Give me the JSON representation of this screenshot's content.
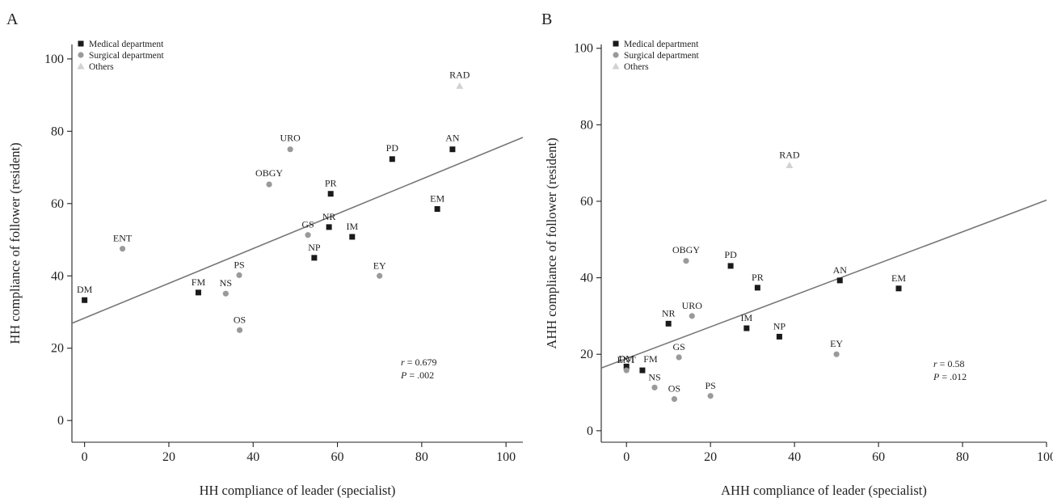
{
  "colors": {
    "medical": "#1a1a1a",
    "surgical": "#9a9a9a",
    "others": "#d2d2d2",
    "regression": "#777777"
  },
  "chart_data": [
    {
      "type": "scatter",
      "panel": "A",
      "xlabel": "HH compliance of leader (specialist)",
      "ylabel": "HH compliance of follower (resident)",
      "xlim": [
        -3,
        104
      ],
      "ylim": [
        -6,
        104
      ],
      "xticks": [
        0,
        20,
        40,
        60,
        80,
        100
      ],
      "yticks": [
        0,
        20,
        40,
        60,
        80,
        100
      ],
      "grid": false,
      "legend_position": "top-left",
      "legend": [
        {
          "label": "Medical department",
          "group": "medical",
          "marker": "square"
        },
        {
          "label": "Surgical department",
          "group": "surgical",
          "marker": "circle"
        },
        {
          "label": "Others",
          "group": "others",
          "marker": "triangle"
        }
      ],
      "points": [
        {
          "label": "DM",
          "x": 0,
          "y": 33.3,
          "group": "medical"
        },
        {
          "label": "ENT",
          "x": 9,
          "y": 47.5,
          "group": "surgical"
        },
        {
          "label": "FM",
          "x": 27,
          "y": 35.4,
          "group": "medical"
        },
        {
          "label": "NS",
          "x": 33.5,
          "y": 35.1,
          "group": "surgical"
        },
        {
          "label": "PS",
          "x": 36.7,
          "y": 40.2,
          "group": "surgical"
        },
        {
          "label": "OS",
          "x": 36.8,
          "y": 25.0,
          "group": "surgical"
        },
        {
          "label": "OBGY",
          "x": 43.8,
          "y": 65.3,
          "group": "surgical"
        },
        {
          "label": "URO",
          "x": 48.8,
          "y": 75.0,
          "group": "surgical"
        },
        {
          "label": "GS",
          "x": 53.0,
          "y": 51.3,
          "group": "surgical"
        },
        {
          "label": "NP",
          "x": 54.5,
          "y": 45.0,
          "group": "medical"
        },
        {
          "label": "NR",
          "x": 58.0,
          "y": 53.5,
          "group": "medical"
        },
        {
          "label": "PR",
          "x": 58.4,
          "y": 62.7,
          "group": "medical"
        },
        {
          "label": "IM",
          "x": 63.5,
          "y": 50.8,
          "group": "medical"
        },
        {
          "label": "EY",
          "x": 70.0,
          "y": 40.0,
          "group": "surgical"
        },
        {
          "label": "PD",
          "x": 73.0,
          "y": 72.3,
          "group": "medical"
        },
        {
          "label": "EM",
          "x": 83.7,
          "y": 58.5,
          "group": "medical"
        },
        {
          "label": "AN",
          "x": 87.3,
          "y": 75.0,
          "group": "medical"
        },
        {
          "label": "RAD",
          "x": 89.0,
          "y": 92.5,
          "group": "others"
        }
      ],
      "regression": {
        "x1": -3,
        "y1": 26.9,
        "x2": 104,
        "y2": 78.3
      },
      "stats": {
        "r_label": "r",
        "r_value": " = 0.679",
        "p_label": "P",
        "p_value": " = .002"
      }
    },
    {
      "type": "scatter",
      "panel": "B",
      "xlabel": "AHH compliance of leader (specialist)",
      "ylabel": "AHH compliance of follower (resident)",
      "xlim": [
        -6,
        100
      ],
      "ylim": [
        -3,
        101
      ],
      "xticks": [
        0,
        20,
        40,
        60,
        80,
        100
      ],
      "yticks": [
        0,
        20,
        40,
        60,
        80,
        100
      ],
      "grid": false,
      "legend_position": "top-left",
      "legend": [
        {
          "label": "Medical department",
          "group": "medical",
          "marker": "square"
        },
        {
          "label": "Surgical department",
          "group": "surgical",
          "marker": "circle"
        },
        {
          "label": "Others",
          "group": "others",
          "marker": "triangle"
        }
      ],
      "points": [
        {
          "label": "DM",
          "x": 0,
          "y": 16.8,
          "group": "medical"
        },
        {
          "label": "ENT",
          "x": 0,
          "y": 15.8,
          "group": "surgical"
        },
        {
          "label": "FM",
          "x": 3.8,
          "y": 15.8,
          "group": "medical"
        },
        {
          "label": "NS",
          "x": 6.7,
          "y": 11.3,
          "group": "surgical"
        },
        {
          "label": "NR",
          "x": 10.0,
          "y": 28.0,
          "group": "medical"
        },
        {
          "label": "OS",
          "x": 11.4,
          "y": 8.3,
          "group": "surgical"
        },
        {
          "label": "GS",
          "x": 12.5,
          "y": 19.2,
          "group": "surgical"
        },
        {
          "label": "OBGY",
          "x": 14.2,
          "y": 44.4,
          "group": "surgical"
        },
        {
          "label": "URO",
          "x": 15.6,
          "y": 30.0,
          "group": "surgical"
        },
        {
          "label": "PS",
          "x": 20.0,
          "y": 9.1,
          "group": "surgical"
        },
        {
          "label": "PD",
          "x": 24.8,
          "y": 43.1,
          "group": "medical"
        },
        {
          "label": "IM",
          "x": 28.6,
          "y": 26.8,
          "group": "medical"
        },
        {
          "label": "PR",
          "x": 31.2,
          "y": 37.4,
          "group": "medical"
        },
        {
          "label": "NP",
          "x": 36.4,
          "y": 24.6,
          "group": "medical"
        },
        {
          "label": "RAD",
          "x": 38.8,
          "y": 69.4,
          "group": "others"
        },
        {
          "label": "EY",
          "x": 50.0,
          "y": 20.0,
          "group": "surgical"
        },
        {
          "label": "AN",
          "x": 50.8,
          "y": 39.3,
          "group": "medical"
        },
        {
          "label": "EM",
          "x": 64.8,
          "y": 37.2,
          "group": "medical"
        }
      ],
      "regression": {
        "x1": -6,
        "y1": 16.4,
        "x2": 100,
        "y2": 60.3
      },
      "stats": {
        "r_label": "r",
        "r_value": " = 0.58",
        "p_label": "P",
        "p_value": " = .012"
      }
    }
  ]
}
